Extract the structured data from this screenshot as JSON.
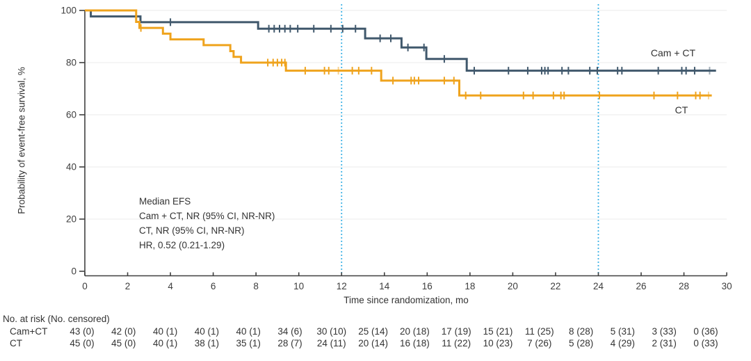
{
  "chart_data": {
    "type": "line",
    "subtype": "kaplan-meier-step",
    "title": "",
    "xlabel": "Time since randomization, mo",
    "ylabel": "Probability of event-free survival, %",
    "xlim": [
      0,
      30
    ],
    "ylim": [
      0,
      100
    ],
    "xticks": [
      0,
      2,
      4,
      6,
      8,
      10,
      12,
      14,
      16,
      18,
      20,
      22,
      24,
      26,
      28,
      30
    ],
    "yticks": [
      0,
      20,
      40,
      60,
      80,
      100
    ],
    "grid": "horizontal",
    "legend_position": "labels-at-line-ends",
    "reference_lines_x": [
      12,
      24
    ],
    "colors": {
      "cam_ct": "#40586C",
      "ct": "#EFA31D",
      "reference_line": "#3FB3E6",
      "grid": "#EBEBEB",
      "axis": "#3F3F3F",
      "text": "#333333"
    },
    "annotation": [
      "Median EFS",
      "Cam + CT, NR (95% CI, NR-NR)",
      "CT, NR (95% CI, NR-NR)",
      "HR, 0.52 (0.21-1.29)"
    ],
    "series": [
      {
        "id": "cam-ct",
        "name": "Cam + CT",
        "color": "#40586C",
        "steps": [
          [
            0,
            100
          ],
          [
            0.28,
            97.7
          ],
          [
            2.6,
            95.5
          ],
          [
            8.1,
            93.0
          ],
          [
            13.1,
            89.3
          ],
          [
            14.8,
            85.8
          ],
          [
            15.96,
            81.4
          ],
          [
            17.85,
            76.9
          ],
          [
            29.5,
            76.9
          ]
        ],
        "censors": [
          [
            4.0,
            95.5
          ],
          [
            8.6,
            93.0
          ],
          [
            8.85,
            93.0
          ],
          [
            9.1,
            93.0
          ],
          [
            9.35,
            93.0
          ],
          [
            9.6,
            93.0
          ],
          [
            9.95,
            93.0
          ],
          [
            10.7,
            93.0
          ],
          [
            11.5,
            93.0
          ],
          [
            12.05,
            93.0
          ],
          [
            12.65,
            93.0
          ],
          [
            13.8,
            89.3
          ],
          [
            14.3,
            89.3
          ],
          [
            15.1,
            85.8
          ],
          [
            15.85,
            85.8
          ],
          [
            16.8,
            81.4
          ],
          [
            18.2,
            76.9
          ],
          [
            19.8,
            76.9
          ],
          [
            20.7,
            76.9
          ],
          [
            21.35,
            76.9
          ],
          [
            21.5,
            76.9
          ],
          [
            21.65,
            76.9
          ],
          [
            22.3,
            76.9
          ],
          [
            22.6,
            76.9
          ],
          [
            23.6,
            76.9
          ],
          [
            23.95,
            76.9
          ],
          [
            24.9,
            76.9
          ],
          [
            25.1,
            76.9
          ],
          [
            26.8,
            76.9
          ],
          [
            27.9,
            76.9
          ],
          [
            28.1,
            76.9
          ],
          [
            28.5,
            76.9
          ],
          [
            29.2,
            76.9,
            0.5
          ]
        ]
      },
      {
        "id": "ct",
        "name": "CT",
        "color": "#EFA31D",
        "steps": [
          [
            0,
            100
          ],
          [
            2.4,
            95.6
          ],
          [
            2.55,
            93.3
          ],
          [
            3.65,
            91.1
          ],
          [
            4.0,
            88.9
          ],
          [
            5.55,
            86.7
          ],
          [
            6.8,
            84.4
          ],
          [
            6.95,
            82.2
          ],
          [
            7.3,
            80.0
          ],
          [
            9.4,
            76.9
          ],
          [
            13.85,
            73.1
          ],
          [
            17.5,
            67.4
          ],
          [
            29.3,
            67.4
          ]
        ],
        "censors": [
          [
            2.62,
            93.3
          ],
          [
            8.55,
            80.0
          ],
          [
            8.8,
            80.0
          ],
          [
            9.0,
            80.0
          ],
          [
            9.2,
            80.0
          ],
          [
            9.35,
            80.0
          ],
          [
            10.3,
            76.9
          ],
          [
            11.2,
            76.9
          ],
          [
            11.4,
            76.9
          ],
          [
            11.85,
            76.9,
            0.5
          ],
          [
            12.5,
            76.9
          ],
          [
            12.8,
            76.9
          ],
          [
            13.4,
            76.9
          ],
          [
            14.4,
            73.1
          ],
          [
            15.25,
            73.1
          ],
          [
            15.4,
            73.1
          ],
          [
            15.6,
            73.1
          ],
          [
            16.8,
            73.1
          ],
          [
            17.25,
            73.1
          ],
          [
            17.8,
            67.4
          ],
          [
            18.5,
            67.4
          ],
          [
            20.5,
            67.4
          ],
          [
            20.95,
            67.4
          ],
          [
            21.9,
            67.4
          ],
          [
            22.25,
            67.4
          ],
          [
            22.4,
            67.4
          ],
          [
            24.05,
            67.4
          ],
          [
            26.6,
            67.4
          ],
          [
            27.7,
            67.4
          ],
          [
            28.55,
            67.4
          ],
          [
            28.75,
            67.4
          ],
          [
            29.15,
            67.4,
            0.45
          ]
        ]
      }
    ],
    "risk_table": {
      "header": "No. at risk (No. censored)",
      "times": [
        0,
        2,
        4,
        6,
        8,
        10,
        12,
        14,
        16,
        18,
        20,
        22,
        24,
        26,
        28,
        30
      ],
      "rows": [
        {
          "name": "Cam+CT",
          "values": [
            "43 (0)",
            "42 (0)",
            "40 (1)",
            "40 (1)",
            "40 (1)",
            "34 (6)",
            "30 (10)",
            "25 (14)",
            "20 (18)",
            "17 (19)",
            "15 (21)",
            "11 (25)",
            "8 (28)",
            "5 (31)",
            "3 (33)",
            "0 (36)"
          ]
        },
        {
          "name": "CT",
          "values": [
            "45 (0)",
            "45 (0)",
            "40 (1)",
            "38 (1)",
            "35 (1)",
            "28 (7)",
            "24 (11)",
            "20 (14)",
            "16 (18)",
            "11 (22)",
            "10 (23)",
            "7 (26)",
            "5 (28)",
            "4 (29)",
            "2 (31)",
            "0 (33)"
          ]
        }
      ]
    }
  }
}
